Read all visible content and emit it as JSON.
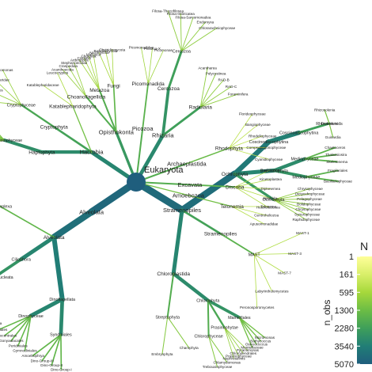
{
  "tree": {
    "root": "Eukaryota",
    "groups": [
      {
        "name": "Stramenopiles",
        "obs": 3000,
        "children": [
          {
            "name": "Ochrophyta",
            "obs": 2600,
            "children": [
              {
                "name": "Coscinodiscophytina",
                "obs": 1500,
                "children": [
                  {
                    "name": "Coscinodiscophytina",
                    "obs": 1100,
                    "children": [
                      {
                        "name": "Rhizosolenids",
                        "obs": 300,
                        "leaves": [
                          "Rhizosolenia",
                          "Proboscia",
                          "Guinardia"
                        ]
                      }
                    ]
                  }
                ]
              },
              {
                "name": "Bacillariophyta",
                "obs": 900,
                "children": [
                  {
                    "name": "Mediophyceae",
                    "obs": 700,
                    "leaves": [
                      "Chaetoceros",
                      "Thalassiosira",
                      "Skeletonema"
                    ]
                  },
                  {
                    "name": "Mediophyceae",
                    "obs": 500,
                    "leaves": [
                      "Fragilariales",
                      "Bacillariophyceae"
                    ]
                  }
                ]
              },
              {
                "name": "Ochrophyta",
                "obs": 400,
                "leaves": [
                  "Chrysophyceae",
                  "Dictyochophyceae",
                  "Pelagophyceae",
                  "Bolidophyceae",
                  "Chrysophyceae",
                  "Synurophyceae",
                  "Raphidophyceae"
                ]
              }
            ]
          },
          {
            "name": "Stramenopiles",
            "obs": 250,
            "children": [
              {
                "name": "MAST",
                "obs": 120,
                "leaves": [
                  "MAST-1",
                  "MAST-3",
                  "MAST-7",
                  "Labyrinthulomycetes",
                  "Peronosporomycetes"
                ]
              }
            ]
          },
          {
            "name": "Chloroplastida",
            "obs": 900,
            "children": [
              {
                "name": "Chlorophyta",
                "obs": 700,
                "children": [
                  {
                    "name": "Mamiellales",
                    "obs": 500,
                    "leaves": [
                      "Micromonas",
                      "Bathycoccus",
                      "Ostreococcus",
                      "Mamiellaceae"
                    ]
                  },
                  {
                    "name": "Prasinophytae",
                    "obs": 200,
                    "leaves": [
                      "Pyramimonas",
                      "Chlorodendrales",
                      "Prasinophyceae",
                      "Nephroselmis"
                    ]
                  },
                  {
                    "name": "Chlorophyceae",
                    "obs": 150,
                    "leaves": [
                      "Chlamydomonas",
                      "Trebouxiophyceae"
                    ]
                  }
                ]
              },
              {
                "name": "Streptophyta",
                "obs": 150,
                "leaves": [
                  "Charophyta",
                  "Embryophyta"
                ]
              }
            ]
          }
        ]
      },
      {
        "name": "Alveolata",
        "obs": 3400,
        "children": [
          {
            "name": "Alveolata",
            "obs": 2400,
            "children": [
              {
                "name": "Dinoflagellata",
                "obs": 1300,
                "children": [
                  {
                    "name": "Syndiniales",
                    "obs": 800,
                    "leaves": [
                      "Dino-Group-I",
                      "Dino-Group-II",
                      "Dino-Group-III",
                      "Amoebophrya"
                    ]
                  },
                  {
                    "name": "Dinophyceae",
                    "obs": 900,
                    "leaves": [
                      "Gymnodiniales",
                      "Peridiniales",
                      "Gonyaulacales",
                      "Prorocentrales",
                      "Suessiales"
                    ]
                  }
                ]
              },
              {
                "name": "Ciliophora",
                "obs": 900,
                "children": [
                  {
                    "name": "Intramacronucleata",
                    "obs": 500,
                    "children": [
                      {
                        "name": "Spirotrichea",
                        "obs": 400,
                        "leaves": [
                          "Strombidiida",
                          "Choreotrichia",
                          "Oligotrichia",
                          "Tintinnida"
                        ]
                      },
                      {
                        "name": "Conthreep",
                        "obs": 200,
                        "leaves": [
                          "Litostomatea",
                          "Phyllopharyngea",
                          "Colpodea"
                        ]
                      }
                    ]
                  }
                ]
              },
              {
                "name": "Apicomplexa",
                "obs": 100,
                "leaves": [
                  "Gregarinasina",
                  "Apicomplexa"
                ]
              }
            ]
          }
        ]
      },
      {
        "name": "Rhizaria",
        "obs": 800,
        "children": [
          {
            "name": "Cercozoa",
            "obs": 500,
            "children": [
              {
                "name": "Cercozoa",
                "obs": 300,
                "leaves": [
                  "Filosa-Thecofilosea",
                  "Filosa-Imbricatea",
                  "Filosa-Sarcomonadea",
                  "Endomyxa",
                  "Chlorarachniophyceae"
                ]
              }
            ]
          },
          {
            "name": "Radiolaria",
            "obs": 300,
            "leaves": [
              "Acantharea",
              "Polycystinea",
              "RAD-B",
              "RAD-C",
              "Foraminifera"
            ]
          }
        ]
      },
      {
        "name": "Hacrobia",
        "obs": 900,
        "children": [
          {
            "name": "Haptophyta",
            "obs": 700,
            "children": [
              {
                "name": "Prymnesiophyceae",
                "obs": 600,
                "leaves": [
                  "Phaeocystis",
                  "Chrysochromulina",
                  "Emiliania",
                  "Prymnesium",
                  "Isochrysidales",
                  "Coccolithales"
                ]
              }
            ]
          },
          {
            "name": "Cryptophyta",
            "obs": 250,
            "children": [
              {
                "name": "Cryptophyceae",
                "obs": 200,
                "leaves": [
                  "Cryptomonadales",
                  "Pyrenomonadales",
                  "Kathablepharidae",
                  "Goniomonas"
                ]
              }
            ]
          },
          {
            "name": "Katablepharidophyta",
            "obs": 60,
            "leaves": [
              "Katablepharidaceae",
              "Leucocryptos"
            ]
          }
        ]
      },
      {
        "name": "Opisthokonta",
        "obs": 400,
        "children": [
          {
            "name": "Choanoflagellida",
            "obs": 150,
            "leaves": [
              "Acanthoecida",
              "Craspedida",
              "Stephanoecidae"
            ]
          },
          {
            "name": "Metazoa",
            "obs": 150,
            "leaves": [
              "Arthropoda",
              "Cnidaria",
              "Chordata",
              "Mollusca"
            ]
          },
          {
            "name": "Fungi",
            "obs": 100,
            "leaves": [
              "Ascomycota",
              "Basidiomycota",
              "Chytridiomycota"
            ]
          }
        ]
      },
      {
        "name": "Picozoa",
        "obs": 150,
        "children": [
          {
            "name": "Picomonadida",
            "obs": 120,
            "leaves": [
              "Picomonadidae",
              "Picozoa-X",
              "Picomonas"
            ]
          }
        ]
      },
      {
        "name": "Archaeplastida",
        "obs": 150,
        "children": [
          {
            "name": "Rhodophyta",
            "obs": 80,
            "leaves": [
              "Florideophyceae",
              "Bangiophyceae",
              "Rhodellophyceae",
              "Compsopogonophyceae",
              "Cyanidiophyceae"
            ]
          }
        ]
      },
      {
        "name": "Excavata",
        "obs": 150,
        "children": [
          {
            "name": "Discoba",
            "obs": 120,
            "leaves": [
              "Euglenozoa",
              "Kinetoplastea",
              "Diplonemea",
              "Jakobida",
              "Heterolobosea"
            ]
          }
        ]
      },
      {
        "name": "Amoebozoa",
        "obs": 60,
        "children": [
          {
            "name": "Telonemia",
            "obs": 60,
            "leaves": [
              "Telonema",
              "Centroheliozoa",
              "Apusomonadidae"
            ]
          }
        ]
      }
    ]
  },
  "legend": {
    "title": "n_obs",
    "title_partial": "N",
    "ticks": [
      "1",
      "161",
      "595",
      "1300",
      "2280",
      "3540",
      "5070"
    ],
    "colors": [
      "#ffff99",
      "#d9ef6a",
      "#a6d83b",
      "#6cbd45",
      "#3f9f5a",
      "#217e76",
      "#1f5e7d"
    ]
  }
}
